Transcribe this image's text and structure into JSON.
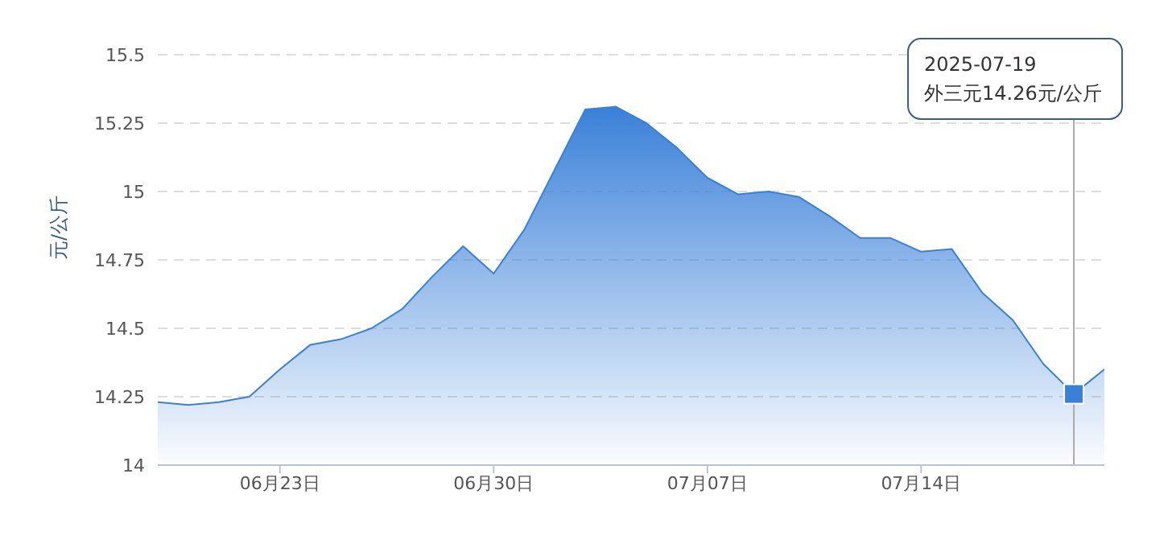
{
  "chart_data": {
    "type": "area",
    "ylabel": "元/公斤",
    "x": [
      "2025-06-19",
      "2025-06-20",
      "2025-06-21",
      "2025-06-22",
      "2025-06-23",
      "2025-06-24",
      "2025-06-25",
      "2025-06-26",
      "2025-06-27",
      "2025-06-28",
      "2025-06-29",
      "2025-06-30",
      "2025-07-01",
      "2025-07-02",
      "2025-07-03",
      "2025-07-04",
      "2025-07-05",
      "2025-07-06",
      "2025-07-07",
      "2025-07-08",
      "2025-07-09",
      "2025-07-10",
      "2025-07-11",
      "2025-07-12",
      "2025-07-13",
      "2025-07-14",
      "2025-07-15",
      "2025-07-16",
      "2025-07-17",
      "2025-07-18",
      "2025-07-19",
      "2025-07-20"
    ],
    "series": [
      {
        "color": "#3a80d8",
        "values": [
          14.23,
          14.22,
          14.23,
          14.25,
          14.35,
          14.44,
          14.46,
          14.5,
          14.57,
          14.69,
          14.8,
          14.7,
          14.86,
          15.08,
          15.3,
          15.31,
          15.25,
          15.16,
          15.05,
          14.99,
          15.0,
          14.98,
          14.91,
          14.83,
          14.83,
          14.78,
          14.79,
          14.63,
          14.53,
          14.37,
          14.26,
          14.35
        ]
      }
    ],
    "xlim": [
      "2025-06-19",
      "2025-07-20"
    ],
    "xticks": [
      {
        "value": "2025-06-23",
        "label": "06月23日"
      },
      {
        "value": "2025-06-30",
        "label": "06月30日"
      },
      {
        "value": "2025-07-07",
        "label": "07月07日"
      },
      {
        "value": "2025-07-14",
        "label": "07月14日"
      }
    ],
    "ylim": [
      14,
      15.5
    ],
    "yticks": [
      14,
      14.25,
      14.5,
      14.75,
      15,
      15.25,
      15.5
    ],
    "grid": "y",
    "ref_lines": [
      {
        "axis": "x",
        "value": "2025-07-19",
        "color": "#aaaaaa"
      }
    ],
    "annotations": [
      "2025-07-19\n外三元14.26元/公斤"
    ]
  }
}
